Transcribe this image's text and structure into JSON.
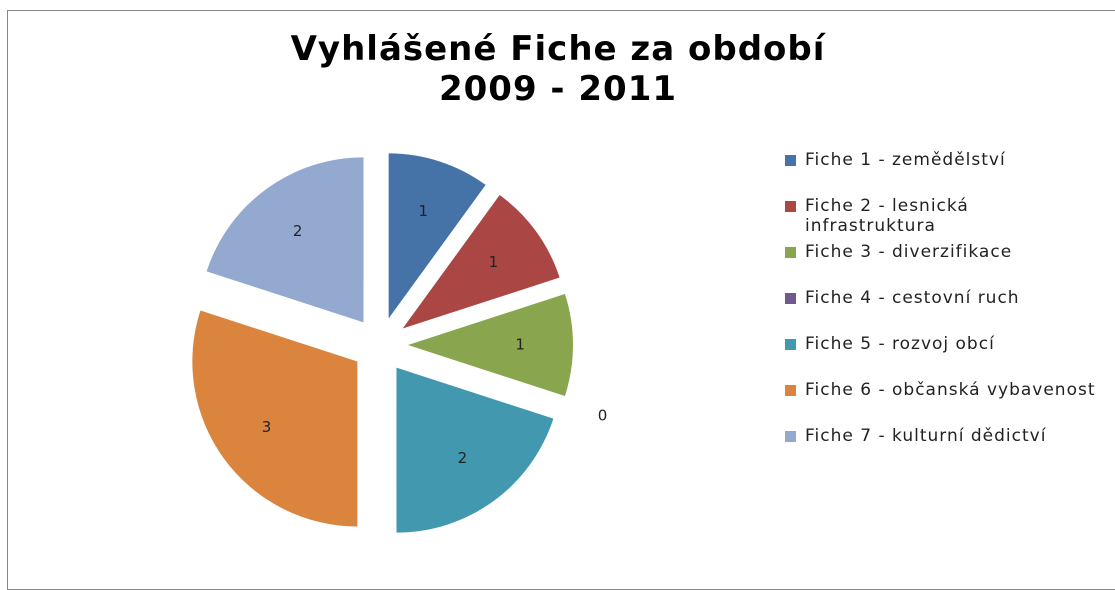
{
  "chart_data": {
    "type": "pie",
    "title": [
      "Vyhlášené Fiche za období",
      "2009 - 2011"
    ],
    "categories": [
      "Fiche 1 - zemědělství",
      "Fiche 2 - lesnická infrastruktura",
      "Fiche 3 - diverzifikace",
      "Fiche 4 - cestovní ruch",
      "Fiche 5 - rozvoj obcí",
      "Fiche 6 - občanská vybavenost",
      "Fiche 7 - kulturní dědictví"
    ],
    "values": [
      1,
      1,
      1,
      0,
      2,
      3,
      2
    ],
    "colors": [
      "#4572a7",
      "#aa4643",
      "#89a54e",
      "#71588f",
      "#4198af",
      "#db843d",
      "#93a9cf"
    ],
    "legend": "right"
  }
}
